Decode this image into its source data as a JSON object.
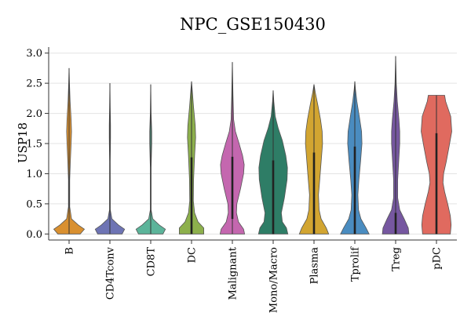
{
  "chart_data": {
    "type": "violin",
    "title": "NPC_GSE150430",
    "xlabel": "",
    "ylabel": "USP18",
    "ylim": [
      -0.1,
      3.1
    ],
    "yticks": [
      "0.0",
      "0.5",
      "1.0",
      "1.5",
      "2.0",
      "2.5",
      "3.0"
    ],
    "grid": true,
    "categories": [
      "B",
      "CD4Tconv",
      "CD8T",
      "DC",
      "Malignant",
      "Mono/Macro",
      "Plasma",
      "Tprolif",
      "Treg",
      "pDC"
    ],
    "colors": [
      "#D99030",
      "#6E74B4",
      "#5CB49A",
      "#8DB04C",
      "#C467AF",
      "#2E7D66",
      "#D2A531",
      "#4A8CC0",
      "#7657A0",
      "#E06A5F"
    ],
    "series": [
      {
        "category": "B",
        "min": 0,
        "max": 2.75,
        "q1": 0,
        "q3": 0,
        "profile": [
          [
            0,
            0.55
          ],
          [
            0.08,
            0.75
          ],
          [
            0.15,
            0.45
          ],
          [
            0.25,
            0.12
          ],
          [
            0.45,
            0.03
          ],
          [
            0.9,
            0.03
          ],
          [
            1.2,
            0.06
          ],
          [
            1.5,
            0.1
          ],
          [
            1.7,
            0.12
          ],
          [
            1.9,
            0.1
          ],
          [
            2.2,
            0.05
          ],
          [
            2.5,
            0.02
          ],
          [
            2.75,
            0
          ]
        ]
      },
      {
        "category": "CD4Tconv",
        "min": 0,
        "max": 2.5,
        "q1": 0,
        "q3": 0,
        "profile": [
          [
            0,
            0.6
          ],
          [
            0.08,
            0.72
          ],
          [
            0.15,
            0.42
          ],
          [
            0.25,
            0.1
          ],
          [
            0.4,
            0.02
          ],
          [
            1.2,
            0.015
          ],
          [
            1.6,
            0.03
          ],
          [
            1.8,
            0.03
          ],
          [
            2.1,
            0.015
          ],
          [
            2.5,
            0
          ]
        ]
      },
      {
        "category": "CD8T",
        "min": 0,
        "max": 2.48,
        "q1": 0,
        "q3": 0,
        "profile": [
          [
            0,
            0.6
          ],
          [
            0.08,
            0.72
          ],
          [
            0.15,
            0.42
          ],
          [
            0.25,
            0.1
          ],
          [
            0.4,
            0.02
          ],
          [
            1.1,
            0.02
          ],
          [
            1.5,
            0.05
          ],
          [
            1.7,
            0.05
          ],
          [
            2.0,
            0.02
          ],
          [
            2.48,
            0
          ]
        ]
      },
      {
        "category": "DC",
        "min": 0,
        "max": 2.53,
        "q1": 0,
        "q3": 1.27,
        "profile": [
          [
            0,
            0.6
          ],
          [
            0.1,
            0.6
          ],
          [
            0.2,
            0.32
          ],
          [
            0.35,
            0.15
          ],
          [
            0.55,
            0.09
          ],
          [
            0.9,
            0.1
          ],
          [
            1.3,
            0.15
          ],
          [
            1.6,
            0.2
          ],
          [
            1.8,
            0.18
          ],
          [
            2.1,
            0.1
          ],
          [
            2.4,
            0.03
          ],
          [
            2.53,
            0
          ]
        ]
      },
      {
        "category": "Malignant",
        "min": 0,
        "max": 2.85,
        "q1": 0.25,
        "q3": 1.28,
        "profile": [
          [
            0,
            0.6
          ],
          [
            0.08,
            0.55
          ],
          [
            0.2,
            0.3
          ],
          [
            0.35,
            0.2
          ],
          [
            0.5,
            0.22
          ],
          [
            0.75,
            0.4
          ],
          [
            1.0,
            0.55
          ],
          [
            1.15,
            0.58
          ],
          [
            1.3,
            0.5
          ],
          [
            1.5,
            0.33
          ],
          [
            1.7,
            0.15
          ],
          [
            1.9,
            0.06
          ],
          [
            2.3,
            0.03
          ],
          [
            2.85,
            0
          ]
        ]
      },
      {
        "category": "Mono/Macro",
        "min": 0,
        "max": 2.38,
        "q1": 0,
        "q3": 1.22,
        "profile": [
          [
            0,
            0.72
          ],
          [
            0.1,
            0.65
          ],
          [
            0.2,
            0.45
          ],
          [
            0.35,
            0.4
          ],
          [
            0.6,
            0.55
          ],
          [
            0.9,
            0.68
          ],
          [
            1.1,
            0.7
          ],
          [
            1.3,
            0.62
          ],
          [
            1.55,
            0.45
          ],
          [
            1.75,
            0.25
          ],
          [
            1.95,
            0.1
          ],
          [
            2.2,
            0.03
          ],
          [
            2.38,
            0
          ]
        ]
      },
      {
        "category": "Plasma",
        "min": 0,
        "max": 2.48,
        "q1": 0,
        "q3": 1.35,
        "profile": [
          [
            0,
            0.72
          ],
          [
            0.1,
            0.6
          ],
          [
            0.25,
            0.35
          ],
          [
            0.4,
            0.25
          ],
          [
            0.65,
            0.22
          ],
          [
            0.9,
            0.28
          ],
          [
            1.2,
            0.35
          ],
          [
            1.5,
            0.42
          ],
          [
            1.7,
            0.4
          ],
          [
            1.9,
            0.32
          ],
          [
            2.15,
            0.18
          ],
          [
            2.35,
            0.06
          ],
          [
            2.48,
            0
          ]
        ]
      },
      {
        "category": "Tprolif",
        "min": 0,
        "max": 2.53,
        "q1": 0,
        "q3": 1.45,
        "profile": [
          [
            0,
            0.7
          ],
          [
            0.1,
            0.55
          ],
          [
            0.25,
            0.3
          ],
          [
            0.4,
            0.18
          ],
          [
            0.65,
            0.15
          ],
          [
            0.9,
            0.2
          ],
          [
            1.2,
            0.28
          ],
          [
            1.5,
            0.35
          ],
          [
            1.7,
            0.33
          ],
          [
            1.95,
            0.22
          ],
          [
            2.2,
            0.1
          ],
          [
            2.4,
            0.03
          ],
          [
            2.53,
            0
          ]
        ]
      },
      {
        "category": "Treg",
        "min": 0,
        "max": 2.95,
        "q1": 0,
        "q3": 0.35,
        "profile": [
          [
            0,
            0.65
          ],
          [
            0.1,
            0.62
          ],
          [
            0.25,
            0.42
          ],
          [
            0.4,
            0.2
          ],
          [
            0.6,
            0.1
          ],
          [
            0.9,
            0.1
          ],
          [
            1.2,
            0.15
          ],
          [
            1.5,
            0.2
          ],
          [
            1.7,
            0.2
          ],
          [
            1.9,
            0.16
          ],
          [
            2.2,
            0.08
          ],
          [
            2.5,
            0.03
          ],
          [
            2.95,
            0
          ]
        ]
      },
      {
        "category": "pDC",
        "min": 0,
        "max": 2.3,
        "q1": 0,
        "q3": 1.67,
        "profile": [
          [
            0,
            0.68
          ],
          [
            0.15,
            0.72
          ],
          [
            0.3,
            0.68
          ],
          [
            0.5,
            0.55
          ],
          [
            0.7,
            0.4
          ],
          [
            0.85,
            0.32
          ],
          [
            1.0,
            0.35
          ],
          [
            1.2,
            0.48
          ],
          [
            1.45,
            0.62
          ],
          [
            1.7,
            0.75
          ],
          [
            1.95,
            0.7
          ],
          [
            2.2,
            0.45
          ],
          [
            2.3,
            0.4
          ]
        ]
      }
    ]
  }
}
